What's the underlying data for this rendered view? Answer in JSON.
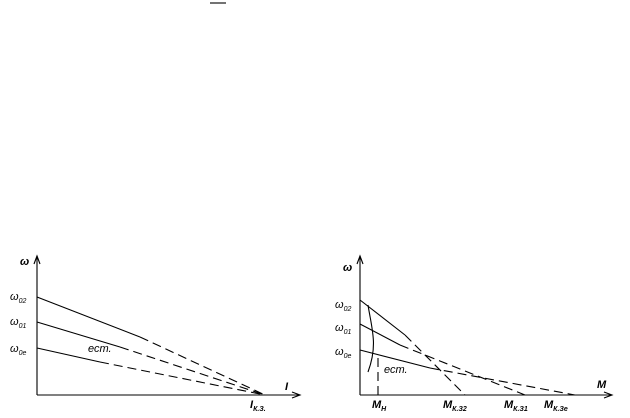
{
  "left": {
    "y_axis": "ω",
    "x_axis": "I",
    "levels": [
      {
        "symbol": "ω",
        "sub": "02"
      },
      {
        "symbol": "ω",
        "sub": "01"
      },
      {
        "symbol": "ω",
        "sub": "0е"
      }
    ],
    "natural": "ест.",
    "short_circuit": {
      "symbol": "I",
      "sub": "К.З."
    }
  },
  "right": {
    "y_axis": "ω",
    "x_axis": "M",
    "levels": [
      {
        "symbol": "ω",
        "sub": "02"
      },
      {
        "symbol": "ω",
        "sub": "01"
      },
      {
        "symbol": "ω",
        "sub": "0е"
      }
    ],
    "natural": "ест.",
    "torques": [
      {
        "symbol": "M",
        "sub": "Н"
      },
      {
        "symbol": "M",
        "sub": "К.З2"
      },
      {
        "symbol": "M",
        "sub": "К.З1"
      },
      {
        "symbol": "M",
        "sub": "К.Зе"
      }
    ]
  }
}
